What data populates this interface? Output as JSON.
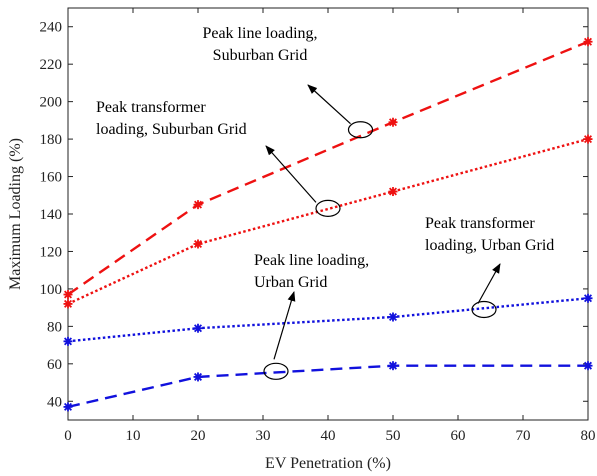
{
  "chart_data": {
    "type": "line",
    "x": [
      0,
      20,
      50,
      80
    ],
    "xlabel": "EV Penetration (%)",
    "ylabel": "Maximum Loading (%)",
    "xlim": [
      0,
      80
    ],
    "ylim": [
      30,
      250
    ],
    "xticks": [
      0,
      10,
      20,
      30,
      40,
      50,
      60,
      70,
      80
    ],
    "yticks": [
      40,
      60,
      80,
      100,
      120,
      140,
      160,
      180,
      200,
      220,
      240
    ],
    "grid": false,
    "series": [
      {
        "key": "line_suburban",
        "color": "#ee1111",
        "dash": "dashed",
        "values": [
          97,
          145,
          189,
          232
        ]
      },
      {
        "key": "trafo_suburban",
        "color": "#ee1111",
        "dash": "dotted",
        "values": [
          92,
          124,
          152,
          180
        ]
      },
      {
        "key": "trafo_urban",
        "color": "#1111dd",
        "dash": "dotted",
        "values": [
          72,
          79,
          85,
          95
        ]
      },
      {
        "key": "line_urban",
        "color": "#1111dd",
        "dash": "dashed",
        "values": [
          37,
          53,
          59,
          59
        ]
      }
    ],
    "annotations": [
      {
        "lines": [
          "Peak line loading,",
          "Suburban Grid"
        ],
        "target_series": "line_suburban",
        "target": [
          45,
          185
        ]
      },
      {
        "lines": [
          "Peak transformer",
          "loading, Suburban Grid"
        ],
        "target_series": "trafo_suburban",
        "target": [
          40,
          143
        ]
      },
      {
        "lines": [
          "Peak line loading,",
          "Urban Grid"
        ],
        "target_series": "line_urban",
        "target": [
          32,
          56
        ]
      },
      {
        "lines": [
          "Peak transformer",
          "loading, Urban Grid"
        ],
        "target_series": "trafo_urban",
        "target": [
          64,
          89
        ]
      }
    ]
  }
}
